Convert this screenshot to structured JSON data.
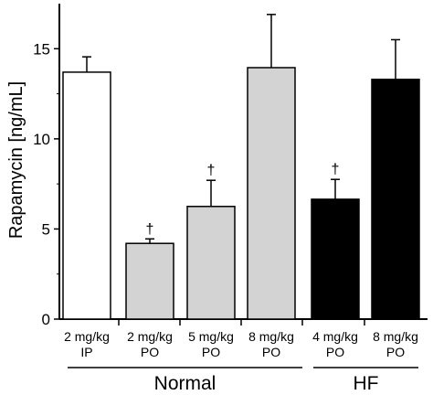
{
  "chart_data": {
    "type": "bar",
    "ylabel": "Rapamycin [ng/mL]",
    "ylim": [
      0,
      17.5
    ],
    "yticks": [
      0,
      5,
      10,
      15
    ],
    "grid": false,
    "categories": [
      {
        "line1": "2 mg/kg",
        "line2": "IP"
      },
      {
        "line1": "2 mg/kg",
        "line2": "PO"
      },
      {
        "line1": "5 mg/kg",
        "line2": "PO"
      },
      {
        "line1": "8 mg/kg",
        "line2": "PO"
      },
      {
        "line1": "4 mg/kg",
        "line2": "PO"
      },
      {
        "line1": "8 mg/kg",
        "line2": "PO"
      }
    ],
    "values": [
      13.7,
      4.2,
      6.25,
      13.95,
      6.65,
      13.3
    ],
    "errors": [
      0.85,
      0.25,
      1.45,
      2.95,
      1.1,
      2.2
    ],
    "fills": [
      "#ffffff",
      "#d3d3d3",
      "#d3d3d3",
      "#d3d3d3",
      "#000000",
      "#000000"
    ],
    "annotations": [
      "",
      "†",
      "†",
      "",
      "†",
      ""
    ],
    "groups": [
      {
        "label": "Normal",
        "from": 0,
        "to": 3
      },
      {
        "label": "HF",
        "from": 4,
        "to": 5
      }
    ]
  }
}
